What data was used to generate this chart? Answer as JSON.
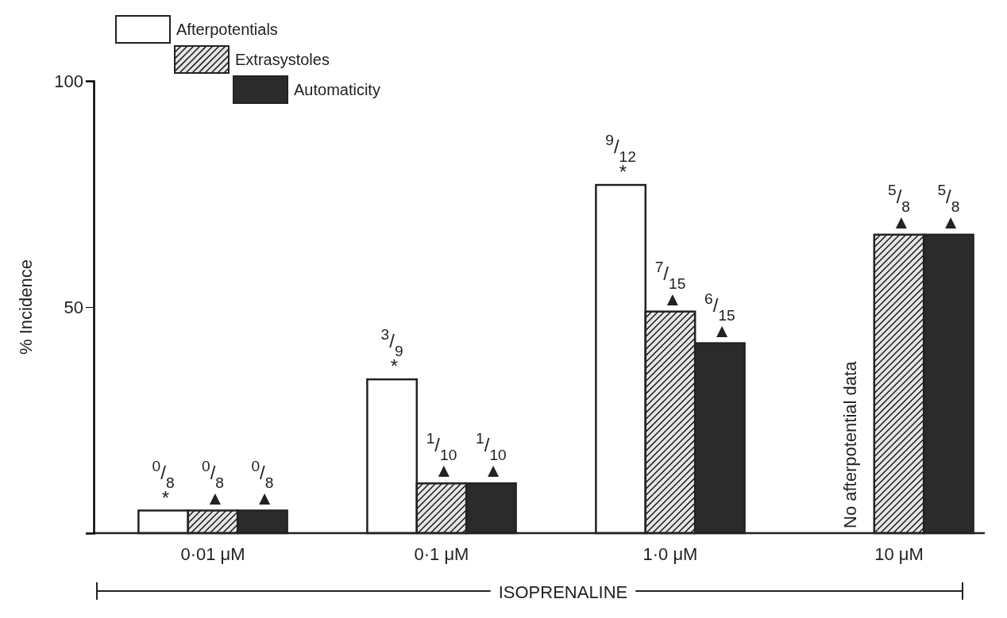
{
  "chart_data": {
    "type": "bar",
    "ylabel": "% Incidence",
    "xlabel": "ISOPRENALINE",
    "categories": [
      "0·01 μM",
      "0·1 μM",
      "1·0 μM",
      "10 μM"
    ],
    "series": [
      {
        "name": "Afterpotentials",
        "color": "#ffffff",
        "values": [
          5,
          34,
          77,
          null
        ],
        "value_labels": [
          "$^{0}$/$_{8}$\n*",
          "$^{3}$/$_{9}$\n*",
          "$^{9}$/$_{12}$\n*",
          null
        ]
      },
      {
        "name": "Extrasystoles",
        "color": "#e6e6e6",
        "values": [
          5,
          11,
          49,
          66
        ],
        "value_labels": [
          "$^{0}$/$_{8}$\n▲",
          "$^{1}$/$_{10}$\n▲",
          "$^{7}$/$_{15}$\n▲",
          "$^{5}$/$_{8}$\n▲"
        ]
      },
      {
        "name": "Automaticity",
        "color": "#2b2b2b",
        "values": [
          5,
          11,
          42,
          66
        ],
        "value_labels": [
          "$^{0}$/$_{8}$\n▲",
          "$^{1}$/$_{10}$\n▲",
          "$^{6}$/$_{15}$\n▲",
          "$^{5}$/$_{8}$\n▲"
        ]
      }
    ],
    "annotations": [
      "No afterpotential data"
    ],
    "ylim": [
      0,
      100
    ],
    "yticks": [
      50,
      100
    ],
    "legend": "top left",
    "grid": false
  }
}
